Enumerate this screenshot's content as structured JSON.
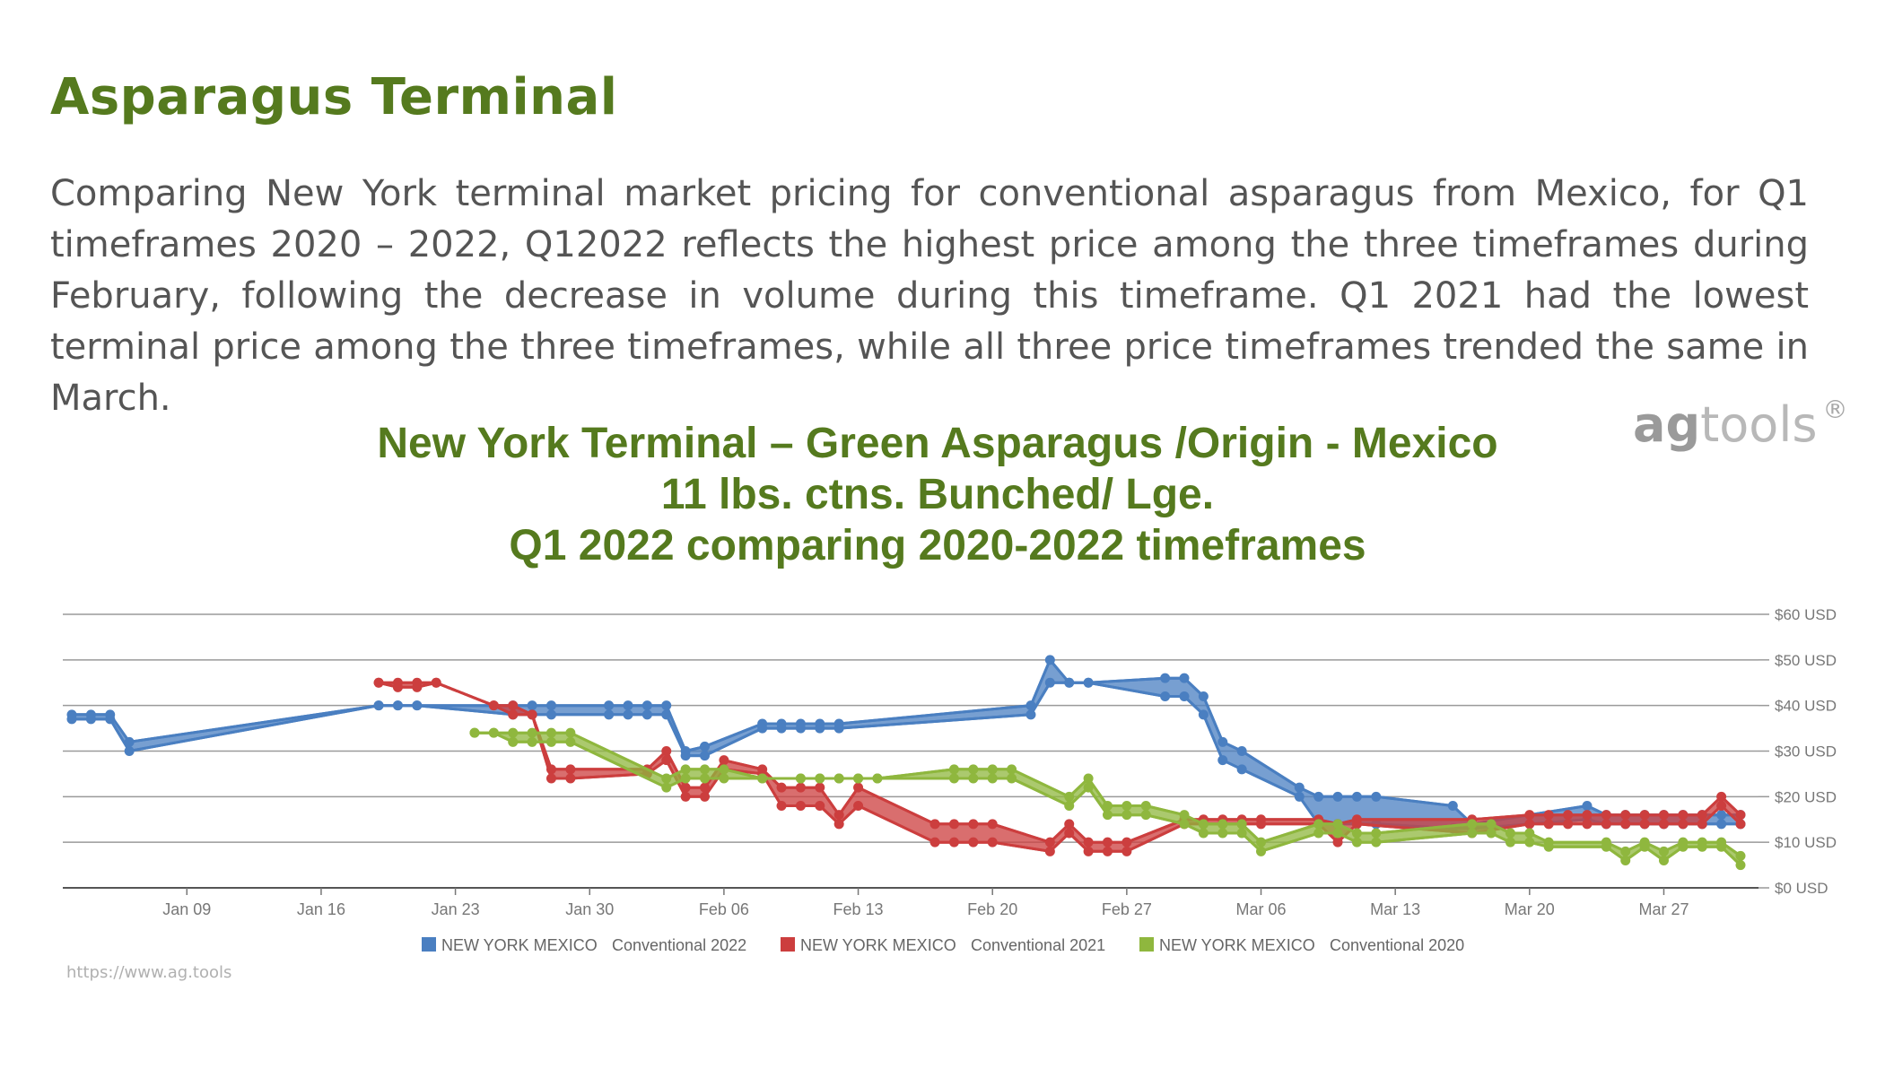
{
  "header": {
    "title": "Asparagus Terminal",
    "description": "Comparing New York terminal market pricing for conventional asparagus from Mexico, for Q1 timeframes 2020 – 2022, Q12022 reflects the highest price among the three timeframes during February, following the decrease in volume during this timeframe.  Q1 2021 had the lowest terminal price among the three timeframes, while all three price timeframes trended the same in March."
  },
  "logo": {
    "brand_part1": "ag",
    "brand_part2": "tools",
    "mark": "®"
  },
  "footer": {
    "url": "https://www.ag.tools"
  },
  "chart_data": {
    "type": "line",
    "title": [
      "New York Terminal – Green Asparagus /Origin - Mexico",
      "11 lbs. ctns. Bunched/ Lge.",
      "Q1 2022 comparing 2020-2022 timeframes"
    ],
    "xlabel": "",
    "ylabel": "",
    "x_range": [
      "2022-01-03",
      "2022-03-31"
    ],
    "ylim": [
      0,
      60
    ],
    "x_ticks": [
      "Jan 09",
      "Jan 16",
      "Jan 23",
      "Jan 30",
      "Feb 06",
      "Feb 13",
      "Feb 20",
      "Feb 27",
      "Mar 06",
      "Mar 13",
      "Mar 20",
      "Mar 27"
    ],
    "x_tick_dates": [
      "2022-01-09",
      "2022-01-16",
      "2022-01-23",
      "2022-01-30",
      "2022-02-06",
      "2022-02-13",
      "2022-02-20",
      "2022-02-27",
      "2022-03-06",
      "2022-03-13",
      "2022-03-20",
      "2022-03-27"
    ],
    "y_ticks": [
      "$0 USD",
      "$10 USD",
      "$20 USD",
      "$30 USD",
      "$40 USD",
      "$50 USD",
      "$60 USD"
    ],
    "y_tick_values": [
      0,
      10,
      20,
      30,
      40,
      50,
      60
    ],
    "grid": true,
    "legend_position": "bottom-center",
    "series": [
      {
        "name": "NEW YORK MEXICO",
        "label": "Conventional 2022",
        "color": "#4a7fc1",
        "points": [
          [
            "2022-01-03",
            37,
            38
          ],
          [
            "2022-01-04",
            37,
            38
          ],
          [
            "2022-01-05",
            37,
            38
          ],
          [
            "2022-01-06",
            30,
            32
          ],
          [
            "2022-01-19",
            40,
            40
          ],
          [
            "2022-01-20",
            40,
            40
          ],
          [
            "2022-01-21",
            40,
            40
          ],
          [
            "2022-01-26",
            38,
            40
          ],
          [
            "2022-01-27",
            38,
            40
          ],
          [
            "2022-01-28",
            38,
            40
          ],
          [
            "2022-01-31",
            38,
            40
          ],
          [
            "2022-02-01",
            38,
            40
          ],
          [
            "2022-02-02",
            38,
            40
          ],
          [
            "2022-02-03",
            38,
            40
          ],
          [
            "2022-02-04",
            29,
            30
          ],
          [
            "2022-02-05",
            29,
            31
          ],
          [
            "2022-02-08",
            35,
            36
          ],
          [
            "2022-02-09",
            35,
            36
          ],
          [
            "2022-02-10",
            35,
            36
          ],
          [
            "2022-02-11",
            35,
            36
          ],
          [
            "2022-02-12",
            35,
            36
          ],
          [
            "2022-02-22",
            38,
            40
          ],
          [
            "2022-02-23",
            45,
            50
          ],
          [
            "2022-02-24",
            45,
            45
          ],
          [
            "2022-02-25",
            45,
            45
          ],
          [
            "2022-03-01",
            42,
            46
          ],
          [
            "2022-03-02",
            42,
            46
          ],
          [
            "2022-03-03",
            38,
            42
          ],
          [
            "2022-03-04",
            28,
            32
          ],
          [
            "2022-03-05",
            26,
            30
          ],
          [
            "2022-03-08",
            20,
            22
          ],
          [
            "2022-03-09",
            14,
            20
          ],
          [
            "2022-03-10",
            14,
            20
          ],
          [
            "2022-03-11",
            14,
            20
          ],
          [
            "2022-03-12",
            14,
            20
          ],
          [
            "2022-03-16",
            13,
            18
          ],
          [
            "2022-03-17",
            13,
            14
          ],
          [
            "2022-03-23",
            15,
            18
          ],
          [
            "2022-03-24",
            14,
            16
          ],
          [
            "2022-03-25",
            14,
            16
          ],
          [
            "2022-03-26",
            14,
            16
          ],
          [
            "2022-03-27",
            14,
            16
          ],
          [
            "2022-03-28",
            14,
            16
          ],
          [
            "2022-03-29",
            14,
            16
          ],
          [
            "2022-03-30",
            14,
            16
          ],
          [
            "2022-03-31",
            14,
            16
          ]
        ]
      },
      {
        "name": "NEW YORK MEXICO",
        "label": "Conventional 2021",
        "color": "#cc3e3e",
        "points": [
          [
            "2022-01-19",
            45,
            45
          ],
          [
            "2022-01-20",
            44,
            45
          ],
          [
            "2022-01-21",
            44,
            45
          ],
          [
            "2022-01-22",
            45,
            45
          ],
          [
            "2022-01-25",
            40,
            40
          ],
          [
            "2022-01-26",
            38,
            40
          ],
          [
            "2022-01-27",
            38,
            38
          ],
          [
            "2022-01-28",
            24,
            26
          ],
          [
            "2022-01-29",
            24,
            26
          ],
          [
            "2022-02-02",
            25,
            26
          ],
          [
            "2022-02-03",
            28,
            30
          ],
          [
            "2022-02-04",
            20,
            22
          ],
          [
            "2022-02-05",
            20,
            22
          ],
          [
            "2022-02-06",
            26,
            28
          ],
          [
            "2022-02-08",
            25,
            26
          ],
          [
            "2022-02-09",
            18,
            22
          ],
          [
            "2022-02-10",
            18,
            22
          ],
          [
            "2022-02-11",
            18,
            22
          ],
          [
            "2022-02-12",
            14,
            16
          ],
          [
            "2022-02-13",
            18,
            22
          ],
          [
            "2022-02-17",
            10,
            14
          ],
          [
            "2022-02-18",
            10,
            14
          ],
          [
            "2022-02-19",
            10,
            14
          ],
          [
            "2022-02-20",
            10,
            14
          ],
          [
            "2022-02-23",
            8,
            10
          ],
          [
            "2022-02-24",
            12,
            14
          ],
          [
            "2022-02-25",
            8,
            10
          ],
          [
            "2022-02-26",
            8,
            10
          ],
          [
            "2022-02-27",
            8,
            10
          ],
          [
            "2022-03-02",
            14,
            15
          ],
          [
            "2022-03-03",
            14,
            15
          ],
          [
            "2022-03-04",
            14,
            15
          ],
          [
            "2022-03-05",
            14,
            15
          ],
          [
            "2022-03-06",
            14,
            15
          ],
          [
            "2022-03-09",
            14,
            15
          ],
          [
            "2022-03-10",
            10,
            14
          ],
          [
            "2022-03-11",
            14,
            15
          ],
          [
            "2022-03-17",
            12,
            15
          ],
          [
            "2022-03-20",
            14,
            16
          ],
          [
            "2022-03-21",
            14,
            16
          ],
          [
            "2022-03-22",
            14,
            16
          ],
          [
            "2022-03-23",
            14,
            16
          ],
          [
            "2022-03-24",
            14,
            16
          ],
          [
            "2022-03-25",
            14,
            16
          ],
          [
            "2022-03-26",
            14,
            16
          ],
          [
            "2022-03-27",
            14,
            16
          ],
          [
            "2022-03-28",
            14,
            16
          ],
          [
            "2022-03-29",
            14,
            16
          ],
          [
            "2022-03-30",
            18,
            20
          ],
          [
            "2022-03-31",
            14,
            16
          ]
        ]
      },
      {
        "name": "NEW YORK MEXICO",
        "label": "Conventional 2020",
        "color": "#8fb73e",
        "points": [
          [
            "2022-01-24",
            34,
            34
          ],
          [
            "2022-01-25",
            34,
            34
          ],
          [
            "2022-01-26",
            32,
            34
          ],
          [
            "2022-01-27",
            32,
            34
          ],
          [
            "2022-01-28",
            32,
            34
          ],
          [
            "2022-01-29",
            32,
            34
          ],
          [
            "2022-02-03",
            22,
            24
          ],
          [
            "2022-02-04",
            24,
            26
          ],
          [
            "2022-02-05",
            24,
            26
          ],
          [
            "2022-02-06",
            24,
            26
          ],
          [
            "2022-02-08",
            24,
            24
          ],
          [
            "2022-02-10",
            24,
            24
          ],
          [
            "2022-02-11",
            24,
            24
          ],
          [
            "2022-02-12",
            24,
            24
          ],
          [
            "2022-02-13",
            24,
            24
          ],
          [
            "2022-02-14",
            24,
            24
          ],
          [
            "2022-02-18",
            24,
            26
          ],
          [
            "2022-02-19",
            24,
            26
          ],
          [
            "2022-02-20",
            24,
            26
          ],
          [
            "2022-02-21",
            24,
            26
          ],
          [
            "2022-02-24",
            18,
            20
          ],
          [
            "2022-02-25",
            22,
            24
          ],
          [
            "2022-02-26",
            16,
            18
          ],
          [
            "2022-02-27",
            16,
            18
          ],
          [
            "2022-02-28",
            16,
            18
          ],
          [
            "2022-03-02",
            14,
            16
          ],
          [
            "2022-03-03",
            12,
            14
          ],
          [
            "2022-03-04",
            12,
            14
          ],
          [
            "2022-03-05",
            12,
            14
          ],
          [
            "2022-03-06",
            8,
            10
          ],
          [
            "2022-03-09",
            12,
            14
          ],
          [
            "2022-03-10",
            12,
            14
          ],
          [
            "2022-03-11",
            10,
            12
          ],
          [
            "2022-03-12",
            10,
            12
          ],
          [
            "2022-03-17",
            12,
            14
          ],
          [
            "2022-03-18",
            12,
            14
          ],
          [
            "2022-03-19",
            10,
            12
          ],
          [
            "2022-03-20",
            10,
            12
          ],
          [
            "2022-03-21",
            9,
            10
          ],
          [
            "2022-03-24",
            9,
            10
          ],
          [
            "2022-03-25",
            6,
            8
          ],
          [
            "2022-03-26",
            9,
            10
          ],
          [
            "2022-03-27",
            6,
            8
          ],
          [
            "2022-03-28",
            9,
            10
          ],
          [
            "2022-03-29",
            9,
            10
          ],
          [
            "2022-03-30",
            9,
            10
          ],
          [
            "2022-03-31",
            5,
            7
          ]
        ]
      }
    ]
  }
}
